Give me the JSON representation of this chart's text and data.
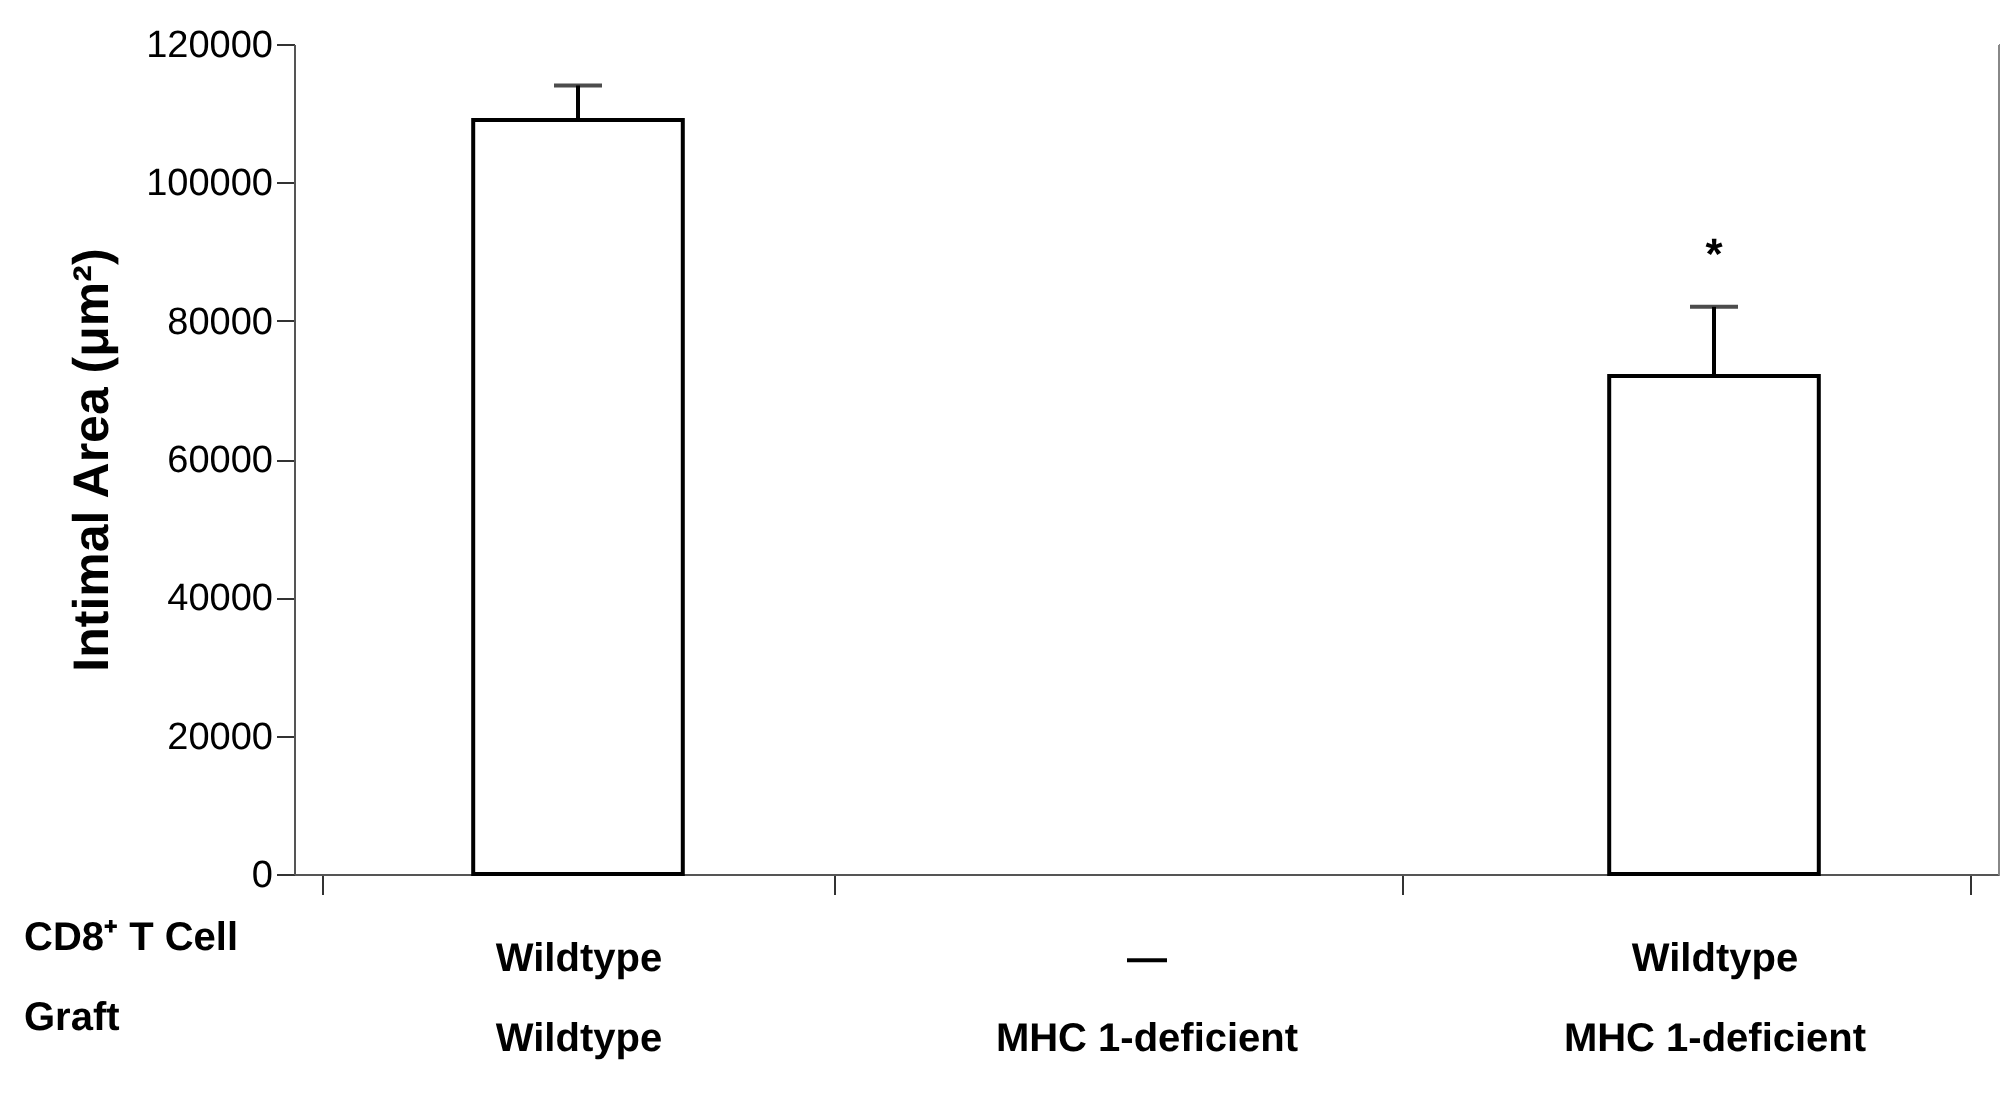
{
  "chart_data": {
    "type": "bar",
    "ylabel": "Intimal Area (μm²)",
    "categories": [
      "Wildtype\nWildtype",
      "—\nMHC 1-deficient",
      "Wildtype\nMHC 1-deficient"
    ],
    "values": [
      109000,
      null,
      72000
    ],
    "errors": [
      [
        109000,
        114000
      ],
      null,
      [
        72000,
        82000
      ]
    ],
    "color": "#ffffff",
    "ylim": [
      0,
      120000
    ],
    "yticks": [
      0,
      20000,
      40000,
      60000,
      80000,
      100000,
      120000
    ],
    "grid": false,
    "annotations": [
      "CD8⁺ T Cell",
      "Graft",
      "*"
    ]
  }
}
